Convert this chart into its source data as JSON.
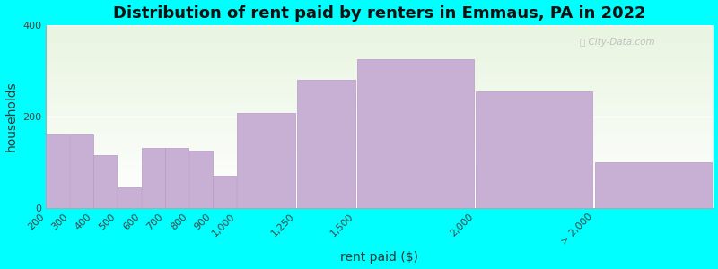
{
  "title": "Distribution of rent paid by renters in Emmaus, PA in 2022",
  "xlabel": "rent paid ($)",
  "ylabel": "households",
  "bar_labels": [
    "200",
    "300",
    "400",
    "500",
    "600",
    "700",
    "800",
    "900",
    "1,000",
    "1,250",
    "1,500",
    "2,000",
    "> 2,000"
  ],
  "bar_left_edges": [
    200,
    300,
    400,
    500,
    600,
    700,
    800,
    900,
    1000,
    1250,
    1500,
    2000,
    2500
  ],
  "bar_right_edges": [
    300,
    400,
    500,
    600,
    700,
    800,
    900,
    1000,
    1250,
    1500,
    2000,
    2500,
    3000
  ],
  "bar_values": [
    160,
    160,
    115,
    45,
    130,
    130,
    125,
    70,
    207,
    280,
    325,
    255,
    100
  ],
  "bar_color": "#c8afd4",
  "bar_edge_color": "#b898c8",
  "outer_background": "#00ffff",
  "plot_bg_color": "#f2fbf2",
  "ylim": [
    0,
    400
  ],
  "yticks": [
    0,
    200,
    400
  ],
  "title_fontsize": 13,
  "axis_label_fontsize": 10,
  "tick_fontsize": 8,
  "watermark_text": "ⓘ City-Data.com"
}
